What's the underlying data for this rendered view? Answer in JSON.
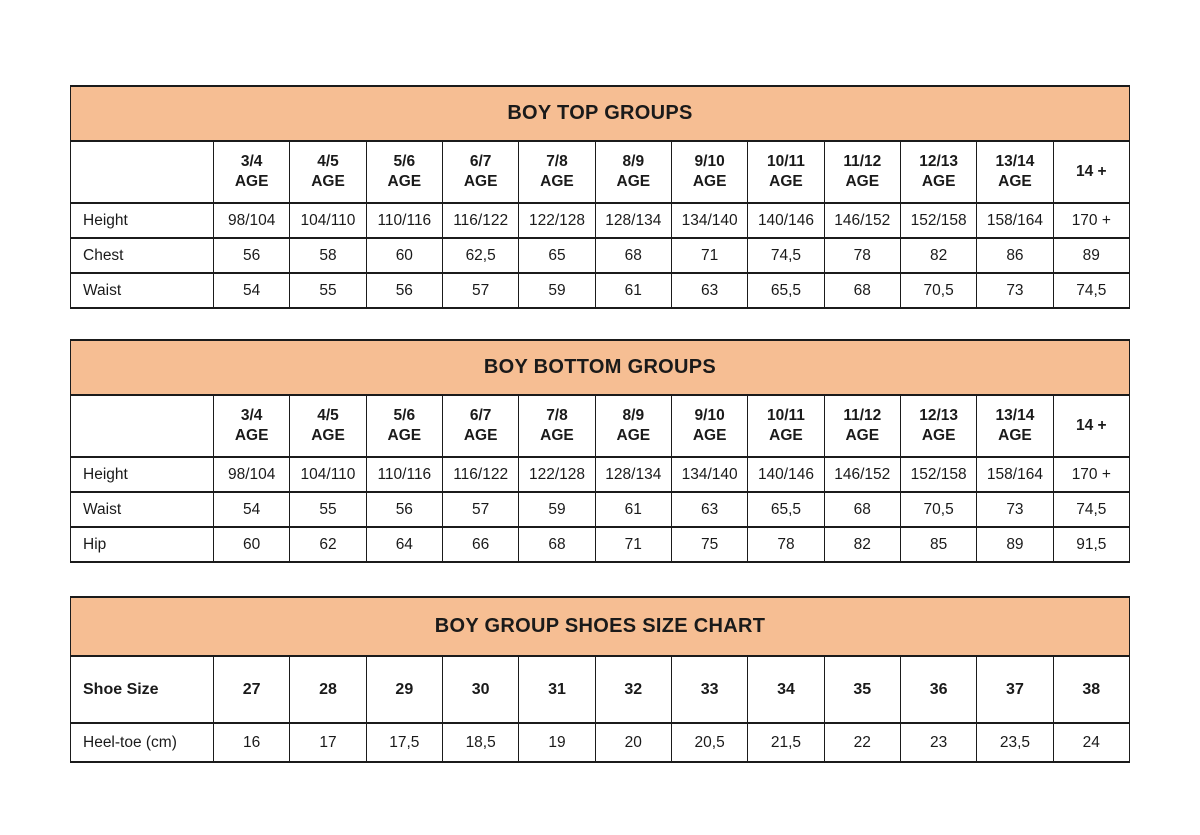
{
  "colors": {
    "header_bg": "#F6BE93",
    "border": "#1b1b1b",
    "text": "#1a1a1a",
    "page_bg": "#ffffff"
  },
  "chart_data": [
    {
      "type": "table",
      "title": "BOY TOP GROUPS",
      "header_row": {
        "label": "",
        "cells": [
          [
            "3/4",
            "AGE"
          ],
          [
            "4/5",
            "AGE"
          ],
          [
            "5/6",
            "AGE"
          ],
          [
            "6/7",
            "AGE"
          ],
          [
            "7/8",
            "AGE"
          ],
          [
            "8/9",
            "AGE"
          ],
          [
            "9/10",
            "AGE"
          ],
          [
            "10/11",
            "AGE"
          ],
          [
            "11/12",
            "AGE"
          ],
          [
            "12/13",
            "AGE"
          ],
          [
            "13/14",
            "AGE"
          ],
          [
            "14 +"
          ]
        ]
      },
      "rows": [
        {
          "label": "Height",
          "values": [
            "98/104",
            "104/110",
            "110/116",
            "116/122",
            "122/128",
            "128/134",
            "134/140",
            "140/146",
            "146/152",
            "152/158",
            "158/164",
            "170 +"
          ]
        },
        {
          "label": "Chest",
          "values": [
            "56",
            "58",
            "60",
            "62,5",
            "65",
            "68",
            "71",
            "74,5",
            "78",
            "82",
            "86",
            "89"
          ]
        },
        {
          "label": "Waist",
          "values": [
            "54",
            "55",
            "56",
            "57",
            "59",
            "61",
            "63",
            "65,5",
            "68",
            "70,5",
            "73",
            "74,5"
          ]
        }
      ]
    },
    {
      "type": "table",
      "title": "BOY BOTTOM GROUPS",
      "header_row": {
        "label": "",
        "cells": [
          [
            "3/4",
            "AGE"
          ],
          [
            "4/5",
            "AGE"
          ],
          [
            "5/6",
            "AGE"
          ],
          [
            "6/7",
            "AGE"
          ],
          [
            "7/8",
            "AGE"
          ],
          [
            "8/9",
            "AGE"
          ],
          [
            "9/10",
            "AGE"
          ],
          [
            "10/11",
            "AGE"
          ],
          [
            "11/12",
            "AGE"
          ],
          [
            "12/13",
            "AGE"
          ],
          [
            "13/14",
            "AGE"
          ],
          [
            "14 +"
          ]
        ]
      },
      "rows": [
        {
          "label": "Height",
          "values": [
            "98/104",
            "104/110",
            "110/116",
            "116/122",
            "122/128",
            "128/134",
            "134/140",
            "140/146",
            "146/152",
            "152/158",
            "158/164",
            "170 +"
          ]
        },
        {
          "label": "Waist",
          "values": [
            "54",
            "55",
            "56",
            "57",
            "59",
            "61",
            "63",
            "65,5",
            "68",
            "70,5",
            "73",
            "74,5"
          ]
        },
        {
          "label": "Hip",
          "values": [
            "60",
            "62",
            "64",
            "66",
            "68",
            "71",
            "75",
            "78",
            "82",
            "85",
            "89",
            "91,5"
          ]
        }
      ]
    },
    {
      "type": "table",
      "title": "BOY GROUP SHOES SIZE CHART",
      "header_row": {
        "label": "Shoe Size",
        "cells": [
          [
            "27"
          ],
          [
            "28"
          ],
          [
            "29"
          ],
          [
            "30"
          ],
          [
            "31"
          ],
          [
            "32"
          ],
          [
            "33"
          ],
          [
            "34"
          ],
          [
            "35"
          ],
          [
            "36"
          ],
          [
            "37"
          ],
          [
            "38"
          ]
        ]
      },
      "rows": [
        {
          "label": "Heel-toe (cm)",
          "values": [
            "16",
            "17",
            "17,5",
            "18,5",
            "19",
            "20",
            "20,5",
            "21,5",
            "22",
            "23",
            "23,5",
            "24"
          ]
        }
      ]
    }
  ]
}
